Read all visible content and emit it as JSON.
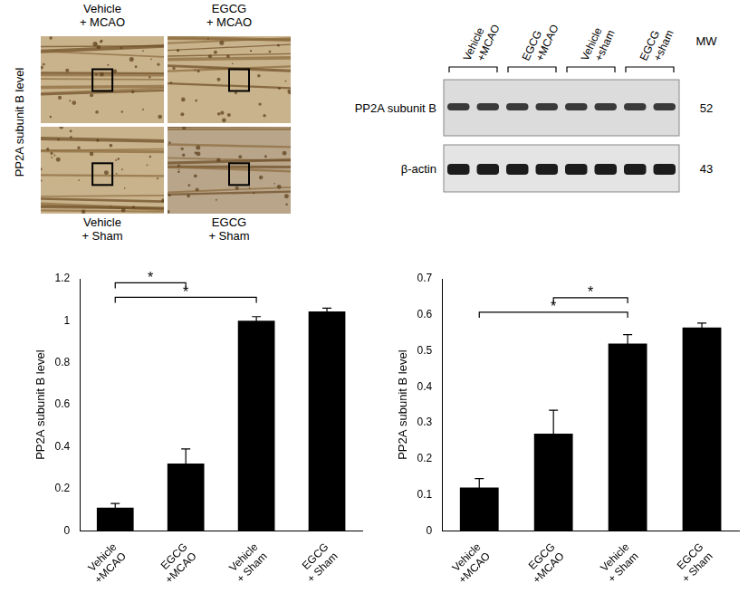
{
  "panels": {
    "staining": {
      "side_label": "PP2A subunit B level",
      "tiles": [
        "Vehicle + MCAO",
        "EGCG + MCAO",
        "Vehicle + Sham",
        "EGCG + Sham"
      ]
    },
    "blot": {
      "groups": [
        "Vehicle +MCAO",
        "EGCG +MCAO",
        "Vehicle +sham",
        "EGCG +sham"
      ],
      "mw_header": "MW",
      "rows": [
        {
          "label": "PP2A subunit B",
          "mw": 52
        },
        {
          "label": "β-actin",
          "mw": 43
        }
      ]
    }
  },
  "chart_data": [
    {
      "type": "bar",
      "y_label": "PP2A subunit B level",
      "categories": [
        "Vehicle +MCAO",
        "EGCG +MCAO",
        "Vehicle + Sham",
        "EGCG + Sham"
      ],
      "values": [
        0.11,
        0.32,
        1.0,
        1.045
      ],
      "errors": [
        0.02,
        0.07,
        0.02,
        0.015
      ],
      "color": "#000000",
      "ylim": [
        0,
        1.2
      ],
      "yticks": [
        0,
        0.2,
        0.4,
        0.6,
        0.8,
        1,
        1.2
      ],
      "grid": false,
      "significance": [
        {
          "from": "Vehicle +MCAO",
          "to": "Vehicle + Sham",
          "label": "*"
        },
        {
          "from": "Vehicle +MCAO",
          "to": "EGCG +MCAO",
          "label": "*"
        }
      ]
    },
    {
      "type": "bar",
      "y_label": "PP2A subunit B level",
      "categories": [
        "Vehicle +MCAO",
        "EGCG +MCAO",
        "Vehicle + Sham",
        "EGCG + Sham"
      ],
      "values": [
        0.12,
        0.27,
        0.52,
        0.565
      ],
      "errors": [
        0.025,
        0.065,
        0.025,
        0.012
      ],
      "color": "#000000",
      "ylim": [
        0,
        0.7
      ],
      "yticks": [
        0,
        0.1,
        0.2,
        0.3,
        0.4,
        0.5,
        0.6,
        0.7
      ],
      "grid": false,
      "significance": [
        {
          "from": "Vehicle +MCAO",
          "to": "Vehicle + Sham",
          "label": "*"
        },
        {
          "from": "EGCG +MCAO",
          "to": "Vehicle + Sham",
          "label": "*"
        }
      ]
    }
  ]
}
